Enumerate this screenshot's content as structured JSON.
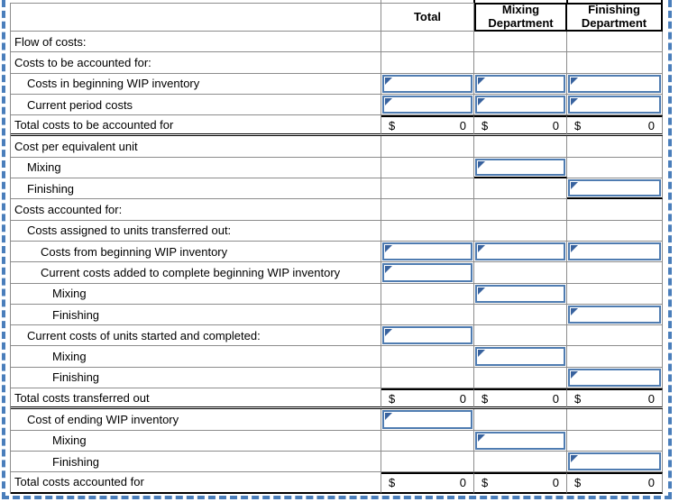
{
  "colors": {
    "gridline": "#8c8c8c",
    "input_border": "#4f7cb1",
    "input_flag": "#38629e",
    "selection_dash": "#4a7ebb",
    "rule": "#000000"
  },
  "icons": {
    "input_flag": "input-flag-icon"
  },
  "table": {
    "header": {
      "label_col": "",
      "total": "Total",
      "mixing": "Mixing Department",
      "finishing": "Finishing Department"
    },
    "money": {
      "dollar": "$",
      "amount": "0"
    },
    "rows": [
      {
        "label": "Flow of costs:",
        "indent": 0,
        "kind": "plain",
        "bottom": "",
        "cells": [
          "",
          "",
          ""
        ]
      },
      {
        "label": "Costs to be accounted for:",
        "indent": 0,
        "kind": "plain",
        "bottom": "",
        "cells": [
          "",
          "",
          ""
        ]
      },
      {
        "label": "Costs in beginning WIP inventory",
        "indent": 1,
        "kind": "plain",
        "bottom": "",
        "cells": [
          "input",
          "input",
          "input"
        ]
      },
      {
        "label": "Current period costs",
        "indent": 1,
        "kind": "plain",
        "bottom": "",
        "cells": [
          "input",
          "input",
          "input"
        ]
      },
      {
        "label": "Total costs to be accounted for",
        "indent": 0,
        "kind": "total",
        "bottom": "double",
        "cells": [
          "money",
          "money",
          "money"
        ]
      },
      {
        "label": "Cost per equivalent unit",
        "indent": 0,
        "kind": "plain",
        "bottom": "",
        "cells": [
          "",
          "",
          ""
        ]
      },
      {
        "label": "Mixing",
        "indent": 1,
        "kind": "plain",
        "bottom": "",
        "cells": [
          "",
          "input-u",
          ""
        ]
      },
      {
        "label": "Finishing",
        "indent": 1,
        "kind": "plain",
        "bottom": "",
        "cells": [
          "",
          "",
          "input-u"
        ]
      },
      {
        "label": "Costs accounted for:",
        "indent": 0,
        "kind": "plain",
        "bottom": "",
        "cells": [
          "",
          "",
          ""
        ]
      },
      {
        "label": "Costs assigned to units transferred out:",
        "indent": 1,
        "kind": "plain",
        "bottom": "",
        "cells": [
          "",
          "",
          ""
        ]
      },
      {
        "label": "Costs from beginning WIP inventory",
        "indent": 2,
        "kind": "plain",
        "bottom": "",
        "cells": [
          "input",
          "input",
          "input"
        ]
      },
      {
        "label": "Current costs added to complete beginning WIP inventory",
        "indent": 2,
        "kind": "plain",
        "bottom": "",
        "cells": [
          "input",
          "",
          ""
        ]
      },
      {
        "label": "Mixing",
        "indent": 3,
        "kind": "plain",
        "bottom": "",
        "cells": [
          "",
          "input",
          ""
        ]
      },
      {
        "label": "Finishing",
        "indent": 3,
        "kind": "plain",
        "bottom": "",
        "cells": [
          "",
          "",
          "input"
        ]
      },
      {
        "label": "Current costs of units started and completed:",
        "indent": 1,
        "kind": "plain",
        "bottom": "",
        "cells": [
          "input",
          "",
          ""
        ]
      },
      {
        "label": "Mixing",
        "indent": 3,
        "kind": "plain",
        "bottom": "",
        "cells": [
          "",
          "input",
          ""
        ]
      },
      {
        "label": "Finishing",
        "indent": 3,
        "kind": "plain",
        "bottom": "",
        "cells": [
          "",
          "",
          "input"
        ]
      },
      {
        "label": "Total costs transferred out",
        "indent": 0,
        "kind": "total",
        "bottom": "double",
        "cells": [
          "money",
          "money",
          "money"
        ]
      },
      {
        "label": "Cost of ending WIP inventory",
        "indent": 1,
        "kind": "plain",
        "bottom": "",
        "cells": [
          "input",
          "",
          ""
        ]
      },
      {
        "label": "Mixing",
        "indent": 3,
        "kind": "plain",
        "bottom": "",
        "cells": [
          "",
          "input",
          ""
        ]
      },
      {
        "label": "Finishing",
        "indent": 3,
        "kind": "plain",
        "bottom": "",
        "cells": [
          "",
          "",
          "input"
        ]
      },
      {
        "label": "Total costs accounted for",
        "indent": 0,
        "kind": "total",
        "bottom": "solid",
        "cells": [
          "money",
          "money",
          "money"
        ]
      }
    ]
  }
}
